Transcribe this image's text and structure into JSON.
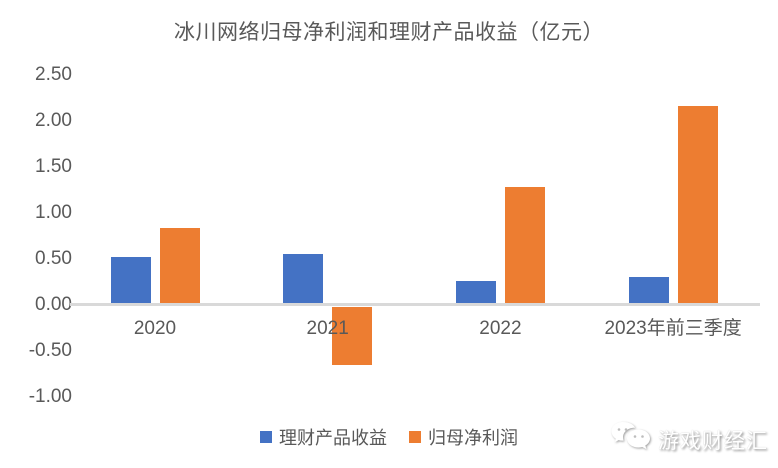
{
  "chart_data": {
    "type": "bar",
    "title": "冰川网络归母净利润和理财产品收益（亿元）",
    "categories": [
      "2020",
      "2021",
      "2022",
      "2023年前三季度"
    ],
    "series": [
      {
        "name": "理财产品收益",
        "color": "#4472C4",
        "values": [
          0.52,
          0.55,
          0.26,
          0.3
        ]
      },
      {
        "name": "归母净利润",
        "color": "#ED7D31",
        "values": [
          0.84,
          -0.65,
          1.28,
          2.16
        ]
      }
    ],
    "y_ticks": [
      "2.50",
      "2.00",
      "1.50",
      "1.00",
      "0.50",
      "0.00",
      "-0.50",
      "-1.00"
    ],
    "ylim": [
      -1.0,
      2.5
    ],
    "grid": false,
    "legend_position": "bottom",
    "axis_color": "#d9d9d9",
    "text_color": "#595959"
  },
  "watermark": {
    "text": "游戏财经汇",
    "icon": "wechat-chat-bubbles-icon"
  }
}
